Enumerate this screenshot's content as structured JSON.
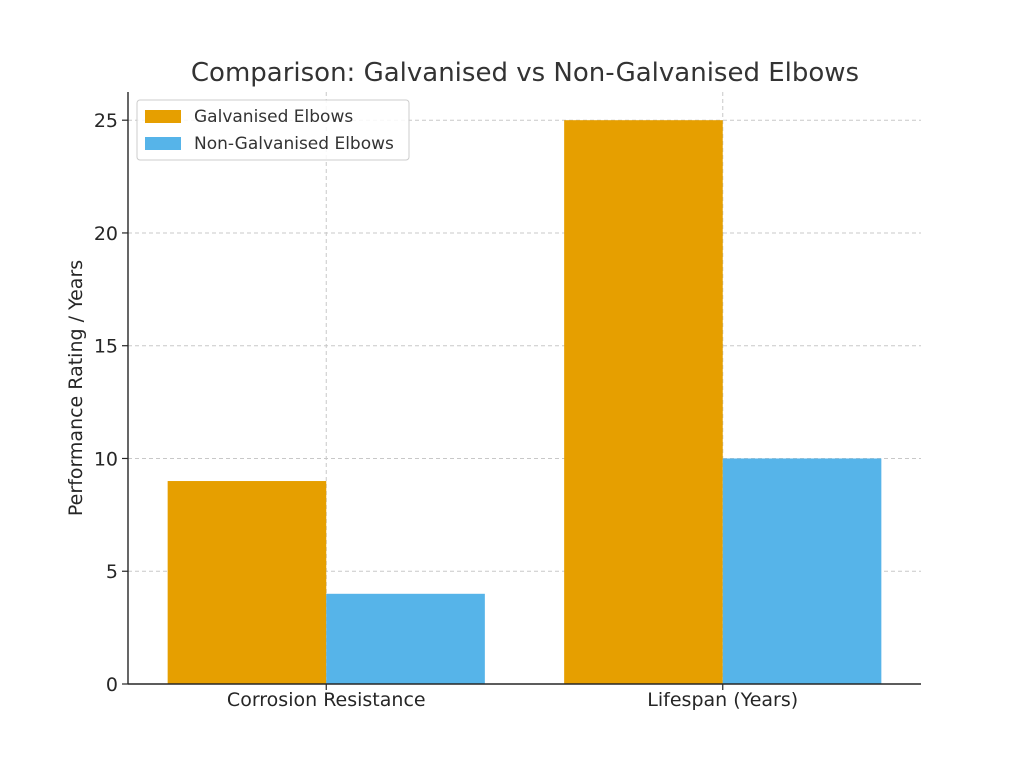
{
  "chart_data": {
    "type": "bar",
    "title": "Comparison: Galvanised vs Non-Galvanised Elbows",
    "xlabel": "",
    "ylabel": "Performance Rating / Years",
    "categories": [
      "Corrosion Resistance",
      "Lifespan (Years)"
    ],
    "series": [
      {
        "name": "Galvanised Elbows",
        "values": [
          9,
          25
        ],
        "color": "#E69F00"
      },
      {
        "name": "Non-Galvanised Elbows",
        "values": [
          4,
          10
        ],
        "color": "#56B4E9"
      }
    ],
    "ylim": [
      0,
      26.25
    ],
    "yticks": [
      0,
      5,
      10,
      15,
      20,
      25
    ],
    "grid": true,
    "legend_position": "upper-left"
  }
}
